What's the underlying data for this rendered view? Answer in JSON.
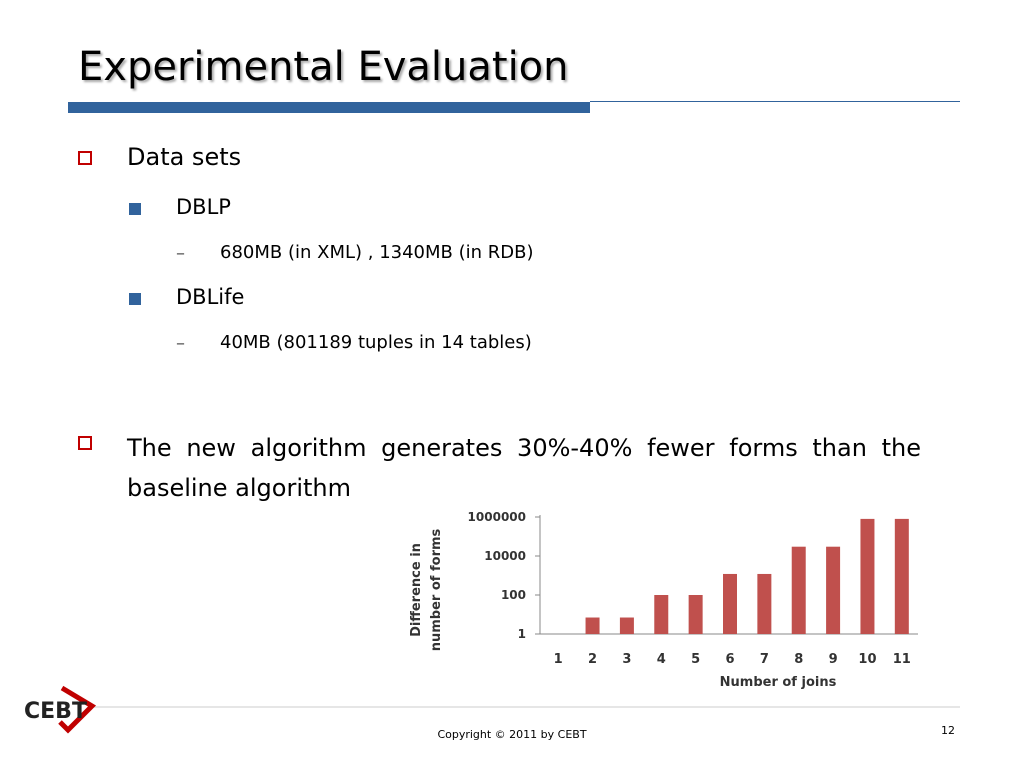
{
  "slide": {
    "title": "Experimental Evaluation",
    "bullets": [
      {
        "text": "Data sets",
        "children": [
          {
            "text": "DBLP",
            "children": [
              "680MB (in XML) , 1340MB (in RDB)"
            ]
          },
          {
            "text": "DBLife",
            "children": [
              "40MB (801189 tuples in 14 tables)"
            ]
          }
        ]
      },
      {
        "text": "The new algorithm generates 30%-40% fewer forms than the baseline algorithm"
      }
    ],
    "logo": "CEBT",
    "footer": "Copyright © 2011 by CEBT",
    "page_number": "12"
  },
  "chart_data": {
    "type": "bar",
    "categories": [
      "1",
      "2",
      "3",
      "4",
      "5",
      "6",
      "7",
      "8",
      "9",
      "10",
      "11"
    ],
    "values": [
      1,
      7,
      7,
      100,
      100,
      1200,
      1200,
      30000,
      30000,
      800000,
      800000
    ],
    "color": "#c0504d",
    "log_scale": true,
    "ylim": [
      1,
      1000000
    ],
    "yticks": [
      1,
      100,
      10000,
      1000000
    ],
    "xlabel": "Number of joins",
    "ylabel": [
      "Difference in",
      "number of forms"
    ]
  }
}
